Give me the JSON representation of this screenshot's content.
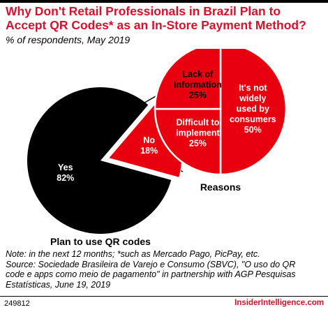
{
  "header": {
    "title": "Why Don't Retail Professionals in Brazil Plan to Accept QR Codes* as an In-Store Payment Method?",
    "subtitle": "% of respondents, May 2019"
  },
  "chart_data": [
    {
      "type": "pie",
      "title": "Plan to use QR codes",
      "slices": [
        {
          "label": "Yes",
          "value": 82,
          "value_label": "82%",
          "color": "#000000",
          "text_color": "#ffffff"
        },
        {
          "label": "No",
          "value": 18,
          "value_label": "18%",
          "color": "#e9000f",
          "text_color": "#ffffff",
          "exploded": true
        }
      ]
    },
    {
      "type": "pie",
      "title": "Reasons",
      "slices": [
        {
          "label": "It's not widely used by consumers",
          "value": 50,
          "value_label": "50%",
          "color": "#e9000f",
          "text_color": "#ffffff"
        },
        {
          "label": "Difficult to implement",
          "value": 25,
          "value_label": "25%",
          "color": "#e9000f",
          "text_color": "#ffffff"
        },
        {
          "label": "Lack of information",
          "value": 25,
          "value_label": "25%",
          "color": "#e9000f",
          "text_color": "#000000"
        }
      ]
    }
  ],
  "footer": {
    "note_lines": [
      "Note: in the next 12 months; *such as Mercado Pago, PicPay, etc.",
      "Source: Sociedade Brasileira de Varejo e Consumo (SBVC), \"O uso do QR",
      "code e apps como meio de pagamento\" in partnership with AGP Pesquisas",
      "Estatísticas, June 19, 2019"
    ],
    "chart_id": "249812",
    "brand": "InsiderIntelligence.com"
  }
}
